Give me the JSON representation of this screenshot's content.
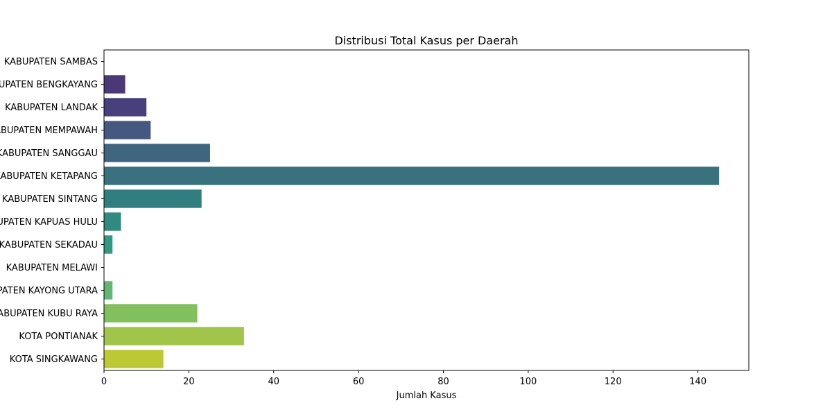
{
  "chart_data": {
    "type": "bar",
    "orientation": "horizontal",
    "title": "Distribusi Total Kasus per Daerah",
    "xlabel": "Jumlah Kasus",
    "ylabel": "",
    "xlim": [
      0,
      152
    ],
    "xticks": [
      0,
      20,
      40,
      60,
      80,
      100,
      120,
      140
    ],
    "grid": false,
    "categories": [
      "KABUPATEN SAMBAS",
      "KABUPATEN BENGKAYANG",
      "KABUPATEN LANDAK",
      "KABUPATEN MEMPAWAH",
      "KABUPATEN SANGGAU",
      "KABUPATEN KETAPANG",
      "KABUPATEN SINTANG",
      "KABUPATEN KAPUAS HULU",
      "KABUPATEN SEKADAU",
      "KABUPATEN MELAWI",
      "KABUPATEN KAYONG UTARA",
      "KABUPATEN KUBU RAYA",
      "KOTA PONTIANAK",
      "KOTA SINGKAWANG"
    ],
    "values": [
      0,
      5,
      10,
      11,
      25,
      145,
      23,
      4,
      2,
      0,
      2,
      22,
      33,
      14
    ],
    "colors": [
      "#481567",
      "#4b3876",
      "#48407c",
      "#45587f",
      "#3f657f",
      "#3a717f",
      "#317e80",
      "#2f8a7f",
      "#319981",
      "#3aa77e",
      "#63b672",
      "#82c05e",
      "#a0c54a",
      "#bdc934"
    ]
  }
}
